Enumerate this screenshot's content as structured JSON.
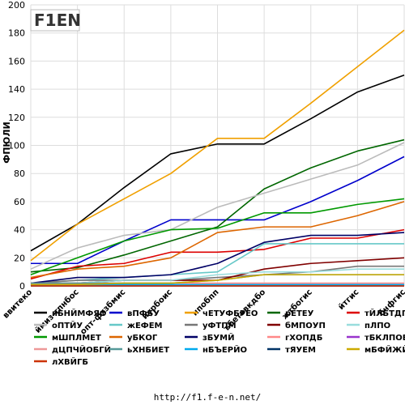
{
  "chart_data": {
    "type": "line",
    "title": "",
    "xlabel": "",
    "ylabel": "ФПЮЛИ",
    "ylim": [
      0,
      200
    ],
    "yticks": [
      0,
      20,
      40,
      60,
      80,
      100,
      120,
      140,
      160,
      180,
      200
    ],
    "grid": true,
    "legend_position": "bottom",
    "categories": [
      "ввитеко",
      "ймиз-тпнбос",
      "опт-фхзбмис",
      "йурбоис",
      "нпобпп",
      "ъбетввкдбо",
      "жтбогис",
      "йтгис",
      "бчфгис"
    ],
    "series": [
      {
        "name": "иБНЙМФЯО",
        "color": "#000000",
        "values": [
          25,
          44,
          70,
          94,
          101,
          101,
          119,
          138,
          150
        ]
      },
      {
        "name": "вПФБУ",
        "color": "#0000cc",
        "values": [
          16,
          16,
          32,
          47,
          47,
          47,
          60,
          75,
          92
        ]
      },
      {
        "name": "чЕТУФБРЕО",
        "color": "#f0a000",
        "values": [
          18,
          44,
          62,
          80,
          105,
          105,
          130,
          156,
          182
        ]
      },
      {
        "name": "рЕТЕУ",
        "color": "#006600",
        "values": [
          10,
          13,
          22,
          32,
          42,
          69,
          84,
          96,
          104
        ]
      },
      {
        "name": "тЙЛБТДП",
        "color": "#dd0000",
        "values": [
          5,
          14,
          16,
          24,
          24,
          26,
          34,
          34,
          40
        ]
      },
      {
        "name": "оПТЙУ",
        "color": "#bbbbbb",
        "values": [
          12,
          27,
          36,
          40,
          56,
          66,
          76,
          86,
          102
        ]
      },
      {
        "name": "жЕФЕМ",
        "color": "#66c8c8",
        "values": [
          2,
          4,
          6,
          8,
          10,
          30,
          30,
          30,
          30
        ]
      },
      {
        "name": "уФТПМ",
        "color": "#777777",
        "values": [
          2,
          4,
          4,
          4,
          6,
          8,
          10,
          14,
          14
        ]
      },
      {
        "name": "бМПОУП",
        "color": "#800000",
        "values": [
          2,
          2,
          4,
          4,
          4,
          12,
          16,
          18,
          20
        ]
      },
      {
        "name": "пЛПО",
        "color": "#99dddd",
        "values": [
          2,
          2,
          4,
          4,
          8,
          10,
          10,
          12,
          12
        ]
      },
      {
        "name": "мШПЛМЕТ",
        "color": "#009900",
        "values": [
          8,
          20,
          32,
          40,
          41,
          52,
          52,
          58,
          62
        ]
      },
      {
        "name": "уБКОГ",
        "color": "#dd6600",
        "values": [
          6,
          12,
          14,
          20,
          38,
          42,
          42,
          50,
          60
        ]
      },
      {
        "name": "зБУМЙ",
        "color": "#000066",
        "values": [
          2,
          6,
          6,
          8,
          16,
          31,
          36,
          36,
          38
        ]
      },
      {
        "name": "гХОПДБ",
        "color": "#ff8888",
        "values": [
          2,
          2,
          2,
          2,
          2,
          2,
          2,
          2,
          2
        ]
      },
      {
        "name": "тБКЛПОЕО",
        "color": "#9933cc",
        "values": [
          0,
          0,
          0,
          0,
          0,
          0,
          0,
          0,
          0
        ]
      },
      {
        "name": "дЦПЧЙОБГЙ",
        "color": "#ee9999",
        "values": [
          1,
          1,
          1,
          1,
          1,
          1,
          1,
          1,
          1
        ]
      },
      {
        "name": "ьХНБИЕТ",
        "color": "#559999",
        "values": [
          2,
          2,
          2,
          2,
          4,
          8,
          8,
          8,
          8
        ]
      },
      {
        "name": "нБЪЕРЙО",
        "color": "#00aaee",
        "values": [
          1,
          1,
          1,
          1,
          1,
          1,
          1,
          1,
          1
        ]
      },
      {
        "name": "тЯУЕМ",
        "color": "#003366",
        "values": [
          0,
          0,
          0,
          0,
          0,
          0,
          0,
          0,
          0
        ]
      },
      {
        "name": "мБФЙЖЙ",
        "color": "#ccaa00",
        "values": [
          1,
          1,
          2,
          2,
          4,
          8,
          8,
          8,
          8
        ]
      },
      {
        "name": "лХВЙГБ",
        "color": "#cc3300",
        "values": [
          0,
          0,
          0,
          0,
          0,
          0,
          0,
          0,
          0
        ]
      }
    ]
  },
  "logo": {
    "text": "F1EN"
  },
  "footer": {
    "url": "http://f1.f-e-n.net/"
  }
}
